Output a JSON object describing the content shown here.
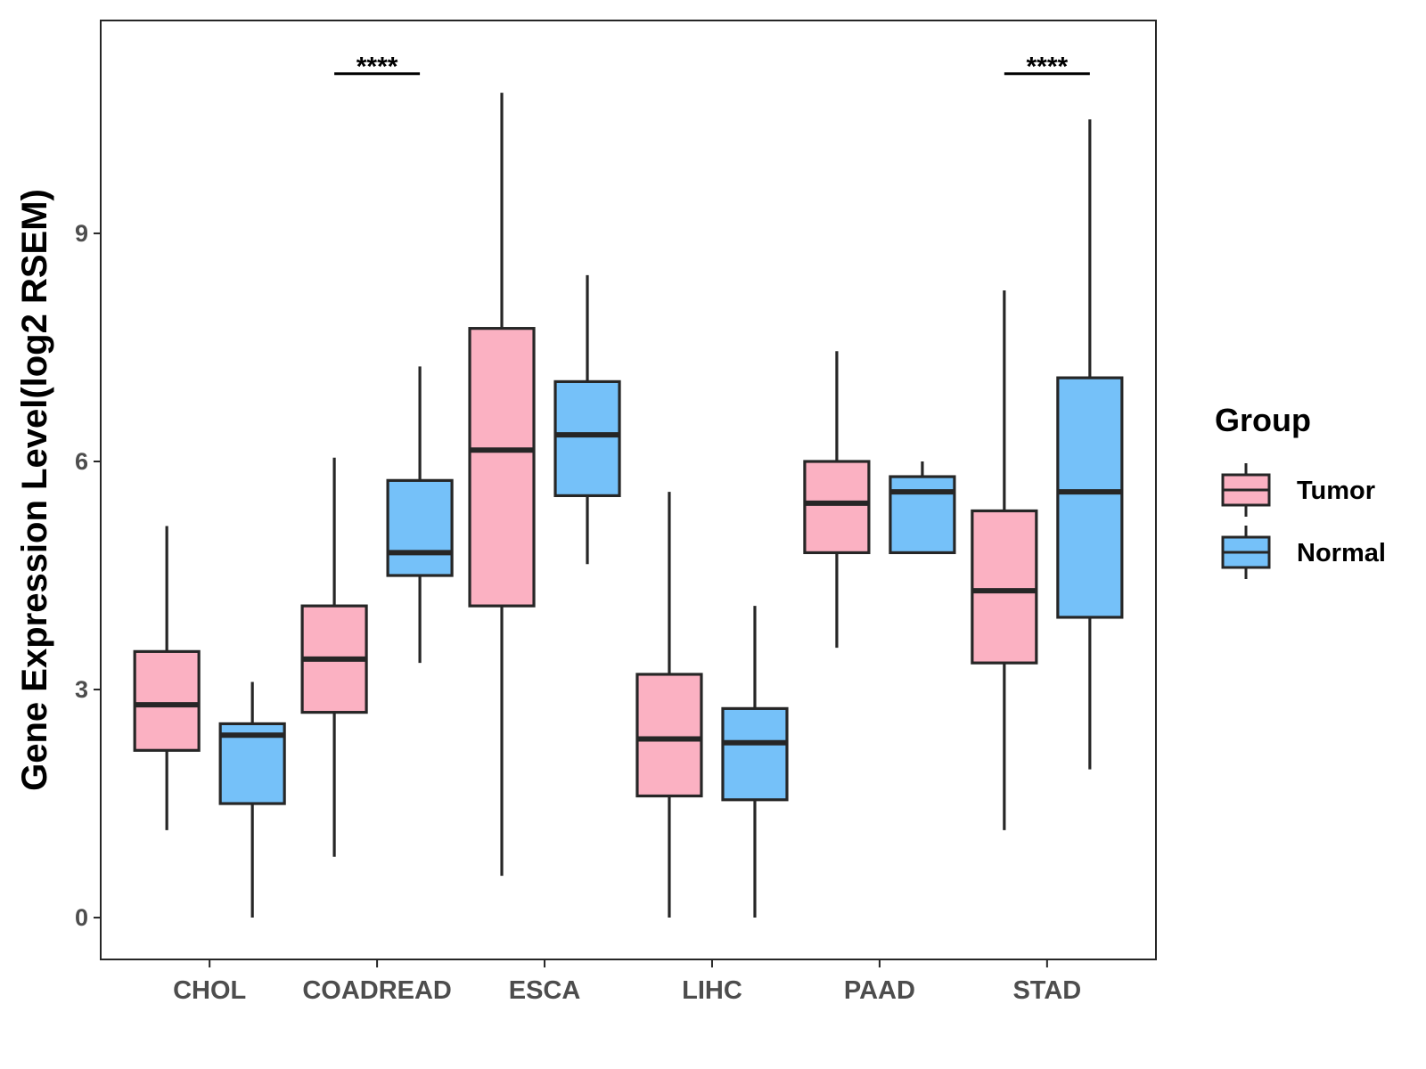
{
  "chart_data": {
    "type": "boxplot",
    "title": "",
    "xlabel": "",
    "ylabel": "Gene Expression Level(log2 RSEM)",
    "ylim": [
      -0.55,
      11.8
    ],
    "yticks": [
      0,
      3,
      6,
      9
    ],
    "categories": [
      "CHOL",
      "COADREAD",
      "ESCA",
      "LIHC",
      "PAAD",
      "STAD"
    ],
    "legend": {
      "title": "Group",
      "position": "right"
    },
    "colors": {
      "Tumor": "#fbb1c2",
      "Normal": "#75c1f9",
      "outline": "#262626"
    },
    "series": [
      {
        "name": "Tumor",
        "boxes": [
          {
            "category": "CHOL",
            "min": 1.15,
            "q1": 2.2,
            "median": 2.8,
            "q3": 3.5,
            "max": 5.15
          },
          {
            "category": "COADREAD",
            "min": 0.8,
            "q1": 2.7,
            "median": 3.4,
            "q3": 4.1,
            "max": 6.05
          },
          {
            "category": "ESCA",
            "min": 0.55,
            "q1": 4.1,
            "median": 6.15,
            "q3": 7.75,
            "max": 10.85
          },
          {
            "category": "LIHC",
            "min": 0.0,
            "q1": 1.6,
            "median": 2.35,
            "q3": 3.2,
            "max": 5.6
          },
          {
            "category": "PAAD",
            "min": 3.55,
            "q1": 4.8,
            "median": 5.45,
            "q3": 6.0,
            "max": 7.45
          },
          {
            "category": "STAD",
            "min": 1.15,
            "q1": 3.35,
            "median": 4.3,
            "q3": 5.35,
            "max": 8.25
          }
        ]
      },
      {
        "name": "Normal",
        "boxes": [
          {
            "category": "CHOL",
            "min": 0.0,
            "q1": 1.5,
            "median": 2.4,
            "q3": 2.55,
            "max": 3.1
          },
          {
            "category": "COADREAD",
            "min": 3.35,
            "q1": 4.5,
            "median": 4.8,
            "q3": 5.75,
            "max": 7.25
          },
          {
            "category": "ESCA",
            "min": 4.65,
            "q1": 5.55,
            "median": 6.35,
            "q3": 7.05,
            "max": 8.45
          },
          {
            "category": "LIHC",
            "min": 0.0,
            "q1": 1.55,
            "median": 2.3,
            "q3": 2.75,
            "max": 4.1
          },
          {
            "category": "PAAD",
            "min": 4.8,
            "q1": 4.8,
            "median": 5.6,
            "q3": 5.8,
            "max": 6.0
          },
          {
            "category": "STAD",
            "min": 1.95,
            "q1": 3.95,
            "median": 5.6,
            "q3": 7.1,
            "max": 10.5
          }
        ]
      }
    ],
    "annotations": [
      {
        "category": "COADREAD",
        "label": "****",
        "y": 11.1
      },
      {
        "category": "STAD",
        "label": "****",
        "y": 11.1
      }
    ]
  }
}
